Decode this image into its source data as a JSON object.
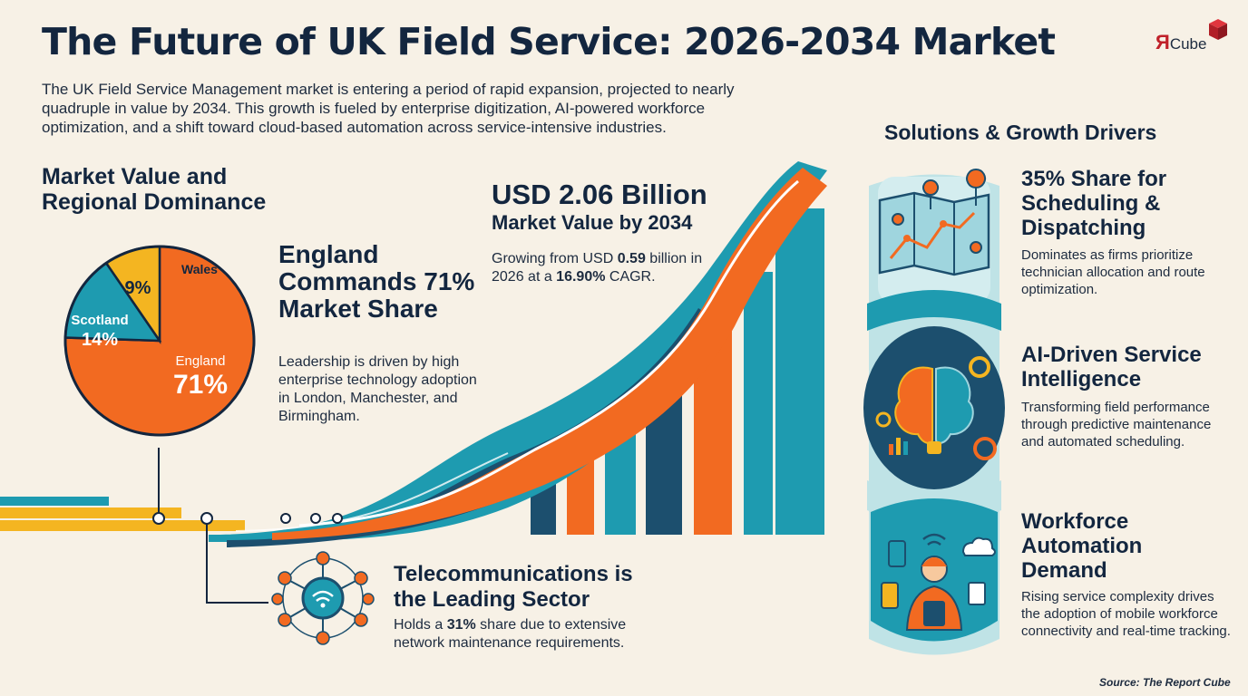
{
  "title": "The Future of UK Field Service: 2026-2034 Market",
  "intro": "The UK Field Service Management market is entering a period of rapid expansion, projected to nearly quadruple in value by 2034. This growth is fueled by enterprise digitization, AI-powered workforce optimization, and a shift toward cloud-based automation across service-intensive industries.",
  "logo": {
    "r": "Я",
    "text": "Cube"
  },
  "market_heading": "Market Value and Regional Dominance",
  "england": {
    "heading": "England Commands 71% Market Share",
    "description": "Leadership is driven by high enterprise technology adoption in London, Manchester, and Birmingham."
  },
  "value_block": {
    "value": "USD 2.06 Billion",
    "subtitle": "Market Value by 2034",
    "growth_pre": "Growing from USD ",
    "growth_start": "0.59",
    "growth_mid": " billion in 2026 at a ",
    "growth_cagr": "16.90%",
    "growth_post": " CAGR."
  },
  "sector": {
    "heading": "Telecommunications is the Leading Sector",
    "desc_pre": "Holds a ",
    "desc_share": "31%",
    "desc_post": " share due to extensive network maintenance requirements."
  },
  "drivers_heading": "Solutions & Growth Drivers",
  "drivers": [
    {
      "title": "35% Share for Scheduling & Dispatching",
      "description": "Dominates as firms prioritize technician allocation and route optimization.",
      "icon": "map-route-icon"
    },
    {
      "title": "AI-Driven Service Intelligence",
      "description": "Transforming field performance through predictive maintenance and automated scheduling.",
      "icon": "ai-brain-icon"
    },
    {
      "title": "Workforce Automation Demand",
      "description": "Rising service complexity drives the adoption of mobile workforce connectivity and real-time tracking.",
      "icon": "mobile-technician-icon"
    }
  ],
  "source": "Source: The Report Cube",
  "colors": {
    "orange": "#f26a21",
    "teal": "#1e9bb0",
    "navy": "#1c4f6e",
    "yellow": "#f4b521",
    "bg": "#f7f1e6"
  },
  "chart_data": {
    "type": "pie",
    "categories": [
      "England",
      "Scotland",
      "Wales"
    ],
    "values": [
      71,
      14,
      9
    ],
    "labels": [
      "71%",
      "14%",
      "9%"
    ],
    "colors": [
      "#f26a21",
      "#1e9bb0",
      "#f4b521"
    ]
  }
}
